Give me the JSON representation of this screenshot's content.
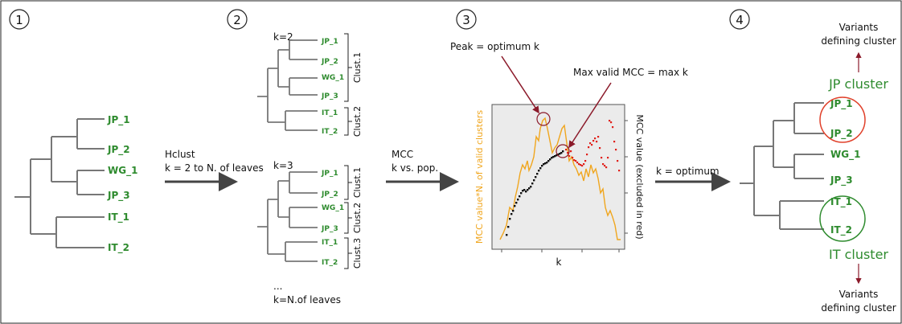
{
  "steps": {
    "s1": "1",
    "s2": "2",
    "s3": "3",
    "s4": "4"
  },
  "colors": {
    "leaf": "#2e8b2e",
    "orange": "#f0a61e",
    "red": "#e0201a",
    "arrow": "#444444",
    "annot": "#8b1a2a"
  },
  "tree1": {
    "leaves": [
      "JP_1",
      "JP_2",
      "WG_1",
      "JP_3",
      "IT_1",
      "IT_2"
    ]
  },
  "arrow1": {
    "line1": "Hclust",
    "line2": "k = 2 to N. of leaves"
  },
  "k2": {
    "label": "k=2",
    "leaves": [
      "JP_1",
      "JP_2",
      "WG_1",
      "JP_3",
      "IT_1",
      "IT_2"
    ],
    "clusters": [
      "Clust.1",
      "Clust.2"
    ]
  },
  "k3": {
    "label": "k=3",
    "leaves": [
      "JP_1",
      "JP_2",
      "WG_1",
      "JP_3",
      "IT_1",
      "IT_2"
    ],
    "clusters": [
      "Clust.1",
      "Clust.2",
      "Clust.3"
    ]
  },
  "kn": {
    "dots": "...",
    "label": "k=N.of leaves"
  },
  "arrow2": {
    "line1": "MCC",
    "line2": "k vs. pop."
  },
  "plot": {
    "peak_label": "Peak = optimum k",
    "max_label": "Max valid MCC = max k",
    "xlabel": "k",
    "ylabel_left": "MCC value*N. of valid clusters",
    "ylabel_right": "MCC value (excluded in red)"
  },
  "arrow3": {
    "label": "k = optimum"
  },
  "tree4": {
    "leaves": [
      "JP_1",
      "JP_2",
      "WG_1",
      "JP_3",
      "IT_1",
      "IT_2"
    ],
    "jp_cluster": "JP cluster",
    "it_cluster": "IT cluster",
    "top_note_1": "Variants",
    "top_note_2": "defining cluster",
    "bottom_note_1": "Variants",
    "bottom_note_2": "defining cluster"
  }
}
